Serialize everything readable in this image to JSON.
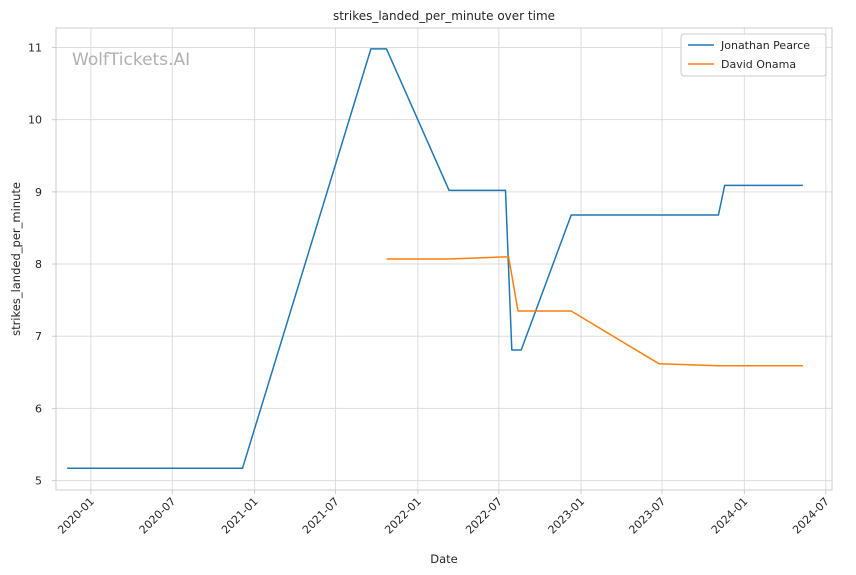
{
  "chart_data": {
    "type": "line",
    "title": "strikes_landed_per_minute over time",
    "xlabel": "Date",
    "ylabel": "strikes_landed_per_minute",
    "watermark": "WolfTickets.AI",
    "x_tick_labels": [
      "2020-01",
      "2020-07",
      "2021-01",
      "2021-07",
      "2022-01",
      "2022-07",
      "2023-01",
      "2023-07",
      "2024-01",
      "2024-07"
    ],
    "y_ticks": [
      5,
      6,
      7,
      8,
      9,
      10,
      11
    ],
    "xlim": [
      "2019-10-15",
      "2024-07-15"
    ],
    "ylim": [
      4.87,
      11.27
    ],
    "grid": true,
    "legend_position": "top-right",
    "series": [
      {
        "name": "Jonathan Pearce",
        "color": "#1f77b4",
        "points": [
          {
            "x": "2019-11-09",
            "y": 5.17
          },
          {
            "x": "2020-12-05",
            "y": 5.17
          },
          {
            "x": "2021-09-18",
            "y": 10.98
          },
          {
            "x": "2021-10-23",
            "y": 10.98
          },
          {
            "x": "2022-03-12",
            "y": 9.02
          },
          {
            "x": "2022-07-16",
            "y": 9.02
          },
          {
            "x": "2022-07-30",
            "y": 6.81
          },
          {
            "x": "2022-08-20",
            "y": 6.81
          },
          {
            "x": "2022-12-10",
            "y": 8.68
          },
          {
            "x": "2023-11-04",
            "y": 8.68
          },
          {
            "x": "2023-11-18",
            "y": 9.09
          },
          {
            "x": "2024-05-11",
            "y": 9.09
          }
        ]
      },
      {
        "name": "David Onama",
        "color": "#ff7f0e",
        "points": [
          {
            "x": "2021-10-23",
            "y": 8.07
          },
          {
            "x": "2022-03-12",
            "y": 8.07
          },
          {
            "x": "2022-07-23",
            "y": 8.1
          },
          {
            "x": "2022-08-13",
            "y": 7.35
          },
          {
            "x": "2022-12-10",
            "y": 7.35
          },
          {
            "x": "2023-06-24",
            "y": 6.62
          },
          {
            "x": "2023-11-04",
            "y": 6.59
          },
          {
            "x": "2024-05-11",
            "y": 6.59
          }
        ]
      }
    ]
  }
}
